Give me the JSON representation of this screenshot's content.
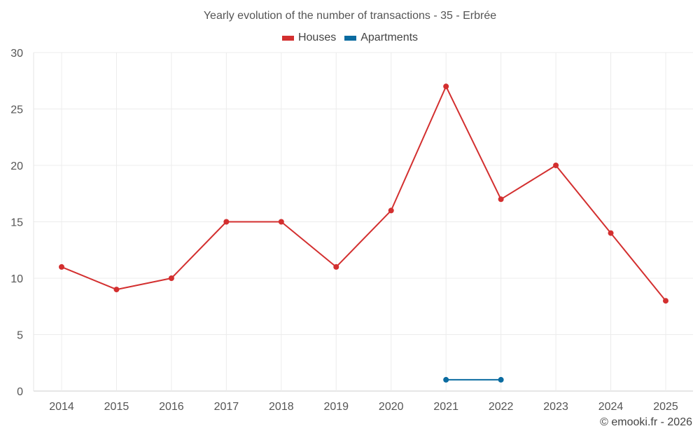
{
  "chart_data": {
    "type": "line",
    "title": "Yearly evolution of the number of transactions - 35 - Erbrée",
    "categories": [
      "2014",
      "2015",
      "2016",
      "2017",
      "2018",
      "2019",
      "2020",
      "2021",
      "2022",
      "2023",
      "2024",
      "2025"
    ],
    "series": [
      {
        "name": "Houses",
        "color": "#d32f2f",
        "values": [
          11,
          9,
          10,
          15,
          15,
          11,
          16,
          27,
          17,
          20,
          14,
          8
        ]
      },
      {
        "name": "Apartments",
        "color": "#0a6ba0",
        "values": [
          null,
          null,
          null,
          null,
          null,
          null,
          null,
          1,
          1,
          null,
          null,
          null
        ]
      }
    ],
    "xlabel": "",
    "ylabel": "",
    "ylim": [
      0,
      30
    ],
    "yticks": [
      0,
      5,
      10,
      15,
      20,
      25,
      30
    ],
    "grid": true,
    "legend_position": "top-center"
  },
  "footer": {
    "credit": "© emooki.fr - 2026"
  }
}
